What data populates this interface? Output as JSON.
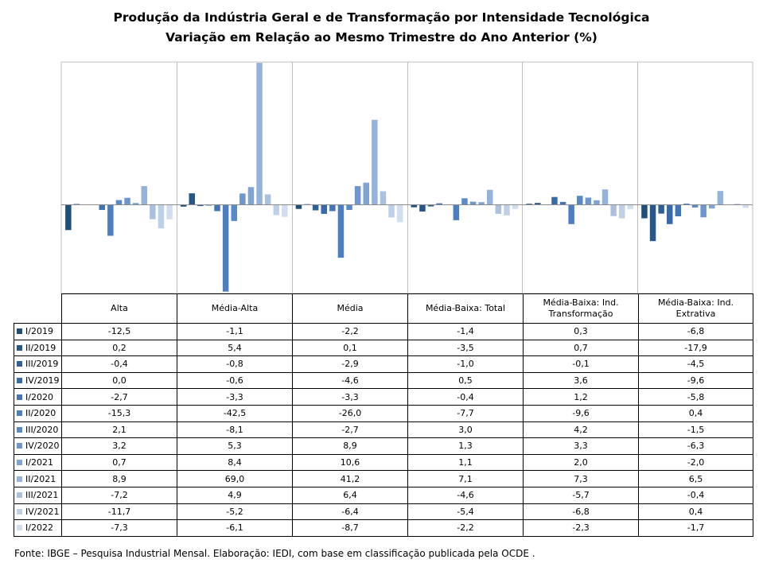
{
  "chart_data": {
    "type": "bar",
    "title": "Produção da Indústria Geral e de Transformação  por Intensidade Tecnológica",
    "subtitle": "Variação  em Relação ao Mesmo Trimestre do Ano Anterior (%)",
    "categories": [
      "Alta",
      "Média-Alta",
      "Média",
      "Média-Baixa: Total",
      "Média-Baixa: Ind. Transformação",
      "Média-Baixa: Ind. Extrativa"
    ],
    "ylim": [
      -45,
      70
    ],
    "grid": false,
    "legend": "table-left",
    "series": [
      {
        "name": "I/2019",
        "color": "#1F4E79",
        "values": [
          -12.5,
          -1.1,
          -2.2,
          -1.4,
          0.3,
          -6.8
        ]
      },
      {
        "name": "II/2019",
        "color": "#27568A",
        "values": [
          0.2,
          5.4,
          0.1,
          -3.5,
          0.7,
          -17.9
        ]
      },
      {
        "name": "III/2019",
        "color": "#2F5F98",
        "values": [
          -0.4,
          -0.8,
          -2.9,
          -1.0,
          -0.1,
          -4.5
        ]
      },
      {
        "name": "IV/2019",
        "color": "#3869A8",
        "values": [
          0.0,
          -0.6,
          -4.6,
          0.5,
          3.6,
          -9.6
        ]
      },
      {
        "name": "I/2020",
        "color": "#4374B8",
        "values": [
          -2.7,
          -3.3,
          -3.3,
          -0.4,
          1.2,
          -5.8
        ]
      },
      {
        "name": "II/2020",
        "color": "#4D7EC2",
        "values": [
          -15.3,
          -42.5,
          -26.0,
          -7.7,
          -9.6,
          0.4
        ]
      },
      {
        "name": "III/2020",
        "color": "#5A89C8",
        "values": [
          2.1,
          -8.1,
          -2.7,
          3.0,
          4.2,
          -1.5
        ]
      },
      {
        "name": "IV/2020",
        "color": "#6C96CD",
        "values": [
          3.2,
          5.3,
          8.9,
          1.3,
          3.3,
          -6.3
        ]
      },
      {
        "name": "I/2021",
        "color": "#7FA3D3",
        "values": [
          0.7,
          8.4,
          10.6,
          1.1,
          2.0,
          -2.0
        ]
      },
      {
        "name": "II/2021",
        "color": "#94B2DA",
        "values": [
          8.9,
          69.0,
          41.2,
          7.1,
          7.3,
          6.5
        ]
      },
      {
        "name": "III/2021",
        "color": "#A9C1E1",
        "values": [
          -7.2,
          4.9,
          6.4,
          -4.6,
          -5.7,
          -0.4
        ]
      },
      {
        "name": "IV/2021",
        "color": "#BDD0E8",
        "values": [
          -11.7,
          -5.2,
          -6.4,
          -5.4,
          -6.8,
          0.4
        ]
      },
      {
        "name": "I/2022",
        "color": "#D1DEEF",
        "values": [
          -7.3,
          -6.1,
          -8.7,
          -2.2,
          -2.3,
          -1.7
        ]
      }
    ],
    "value_labels": [
      [
        "-12,5",
        "-1,1",
        "-2,2",
        "-1,4",
        "0,3",
        "-6,8"
      ],
      [
        "0,2",
        "5,4",
        "0,1",
        "-3,5",
        "0,7",
        "-17,9"
      ],
      [
        "-0,4",
        "-0,8",
        "-2,9",
        "-1,0",
        "-0,1",
        "-4,5"
      ],
      [
        "0,0",
        "-0,6",
        "-4,6",
        "0,5",
        "3,6",
        "-9,6"
      ],
      [
        "-2,7",
        "-3,3",
        "-3,3",
        "-0,4",
        "1,2",
        "-5,8"
      ],
      [
        "-15,3",
        "-42,5",
        "-26,0",
        "-7,7",
        "-9,6",
        "0,4"
      ],
      [
        "2,1",
        "-8,1",
        "-2,7",
        "3,0",
        "4,2",
        "-1,5"
      ],
      [
        "3,2",
        "5,3",
        "8,9",
        "1,3",
        "3,3",
        "-6,3"
      ],
      [
        "0,7",
        "8,4",
        "10,6",
        "1,1",
        "2,0",
        "-2,0"
      ],
      [
        "8,9",
        "69,0",
        "41,2",
        "7,1",
        "7,3",
        "6,5"
      ],
      [
        "-7,2",
        "4,9",
        "6,4",
        "-4,6",
        "-5,7",
        "-0,4"
      ],
      [
        "-11,7",
        "-5,2",
        "-6,4",
        "-5,4",
        "-6,8",
        "0,4"
      ],
      [
        "-7,3",
        "-6,1",
        "-8,7",
        "-2,2",
        "-2,3",
        "-1,7"
      ]
    ]
  },
  "header_lines": [
    [
      "Alta"
    ],
    [
      "Média-Alta"
    ],
    [
      "Média"
    ],
    [
      "Média-Baixa: Total"
    ],
    [
      "Média-Baixa: Ind.",
      "Transformação"
    ],
    [
      "Média-Baixa: Ind.",
      "Extrativa"
    ]
  ],
  "source": "Fonte: IBGE – Pesquisa Industrial Mensal. Elaboração: IEDI, com base em classificação publicada pela OCDE ."
}
